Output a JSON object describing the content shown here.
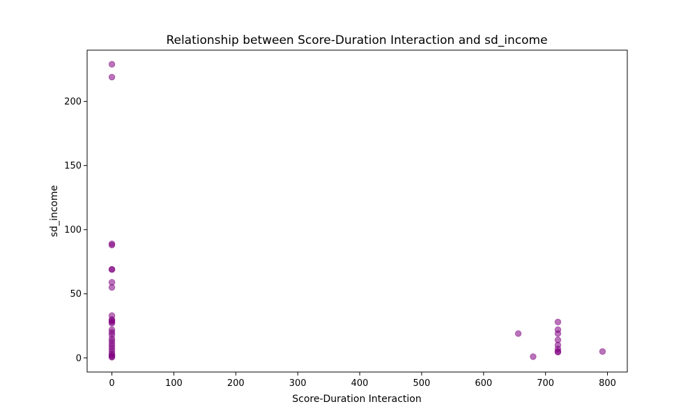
{
  "chart_data": {
    "type": "scatter",
    "title": "Relationship between Score-Duration Interaction and sd_income",
    "xlabel": "Score-Duration Interaction",
    "ylabel": "sd_income",
    "xlim": [
      -40,
      832
    ],
    "ylim": [
      -11,
      240
    ],
    "xticks": [
      0,
      100,
      200,
      300,
      400,
      500,
      600,
      700,
      800
    ],
    "yticks": [
      0,
      50,
      100,
      150,
      200
    ],
    "grid": false,
    "legend": "none",
    "marker_color": "#800080",
    "marker_alpha": 0.55,
    "points": [
      {
        "x": 0,
        "y": 229
      },
      {
        "x": 0,
        "y": 219
      },
      {
        "x": 0,
        "y": 89
      },
      {
        "x": 0,
        "y": 88
      },
      {
        "x": 0,
        "y": 69
      },
      {
        "x": 0,
        "y": 69
      },
      {
        "x": 0,
        "y": 59
      },
      {
        "x": 0,
        "y": 55
      },
      {
        "x": 0,
        "y": 33
      },
      {
        "x": 0,
        "y": 30
      },
      {
        "x": 0,
        "y": 29
      },
      {
        "x": 0,
        "y": 28
      },
      {
        "x": 0,
        "y": 27
      },
      {
        "x": 0,
        "y": 22
      },
      {
        "x": 0,
        "y": 20
      },
      {
        "x": 0,
        "y": 18
      },
      {
        "x": 0,
        "y": 15
      },
      {
        "x": 0,
        "y": 13
      },
      {
        "x": 0,
        "y": 11
      },
      {
        "x": 0,
        "y": 9
      },
      {
        "x": 0,
        "y": 7
      },
      {
        "x": 0,
        "y": 5
      },
      {
        "x": 0,
        "y": 3
      },
      {
        "x": 0,
        "y": 2
      },
      {
        "x": 0,
        "y": 1
      },
      {
        "x": 0,
        "y": 0.5
      },
      {
        "x": 656,
        "y": 19
      },
      {
        "x": 680,
        "y": 1
      },
      {
        "x": 720,
        "y": 28
      },
      {
        "x": 720,
        "y": 22
      },
      {
        "x": 720,
        "y": 19
      },
      {
        "x": 720,
        "y": 14
      },
      {
        "x": 720,
        "y": 10
      },
      {
        "x": 720,
        "y": 7
      },
      {
        "x": 720,
        "y": 5
      },
      {
        "x": 720,
        "y": 4.5
      },
      {
        "x": 792,
        "y": 5
      }
    ]
  }
}
